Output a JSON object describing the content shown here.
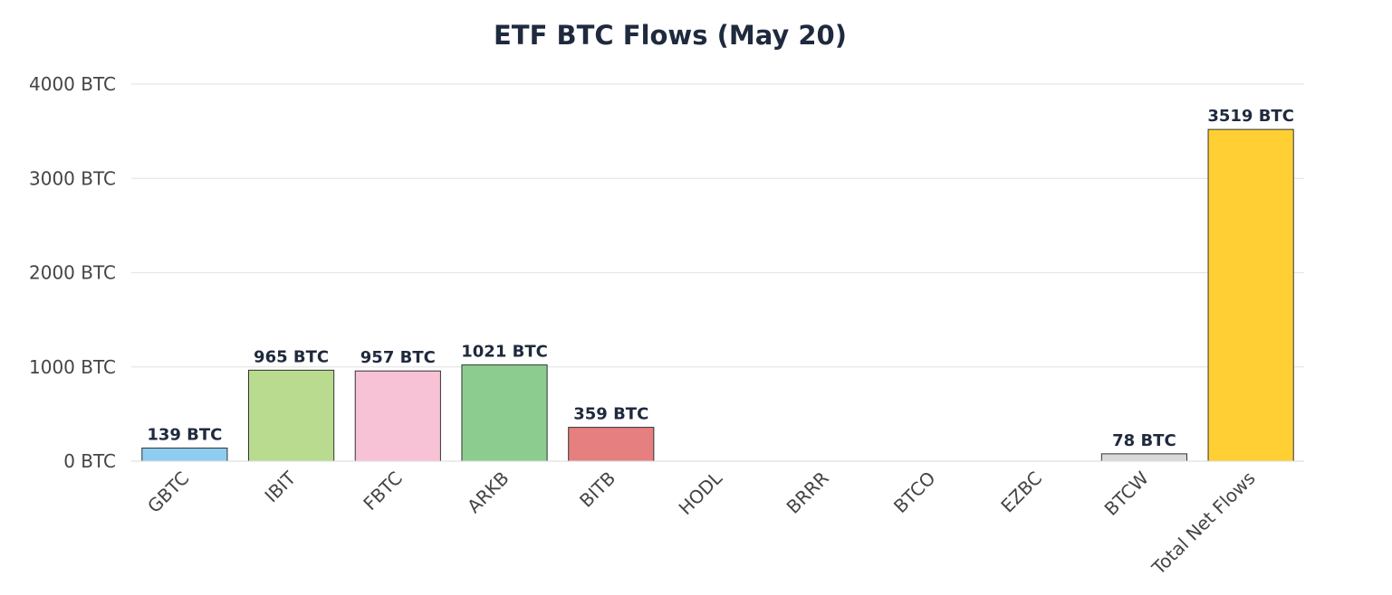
{
  "chart_data": {
    "type": "bar",
    "title": "ETF BTC Flows (May 20)",
    "xlabel": "",
    "ylabel": "",
    "ylim": [
      0,
      4000
    ],
    "yticks": [
      0,
      1000,
      2000,
      3000,
      4000
    ],
    "ytick_labels": [
      "0 BTC",
      "1000 BTC",
      "2000 BTC",
      "3000 BTC",
      "4000 BTC"
    ],
    "categories": [
      "GBTC",
      "IBIT",
      "FBTC",
      "ARKB",
      "BITB",
      "HODL",
      "BRRR",
      "BTCO",
      "EZBC",
      "BTCW",
      "Total Net Flows"
    ],
    "values": [
      139,
      965,
      957,
      1021,
      359,
      0,
      0,
      0,
      0,
      78,
      3519
    ],
    "data_labels": [
      "139 BTC",
      "965 BTC",
      "957 BTC",
      "1021 BTC",
      "359 BTC",
      "",
      "",
      "",
      "",
      "78 BTC",
      "3519 BTC"
    ],
    "colors": [
      "#8ecdf0",
      "#b8db8f",
      "#f7c2d6",
      "#8ccd8f",
      "#e67f7f",
      "#d9d9d9",
      "#d9d9d9",
      "#d9d9d9",
      "#d9d9d9",
      "#d9d9d9",
      "#ffcf33"
    ],
    "grid": true,
    "legend": "none"
  }
}
